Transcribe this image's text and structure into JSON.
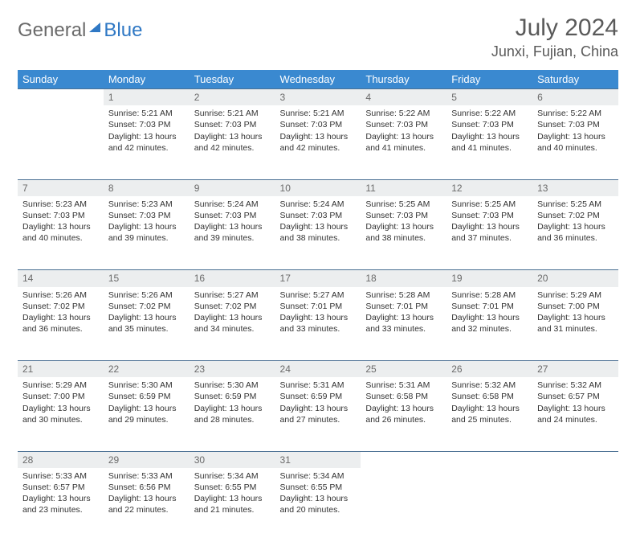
{
  "brand": {
    "part1": "General",
    "part2": "Blue"
  },
  "title": {
    "month": "July 2024",
    "location": "Junxi, Fujian, China"
  },
  "colors": {
    "header_bg": "#3a89d0",
    "header_text": "#ffffff",
    "daynum_bg": "#eceeef",
    "grid_line": "#4a6f93",
    "text": "#333333",
    "muted": "#6a6a6a"
  },
  "weekdays": [
    "Sunday",
    "Monday",
    "Tuesday",
    "Wednesday",
    "Thursday",
    "Friday",
    "Saturday"
  ],
  "weeks": [
    [
      null,
      {
        "d": "1",
        "sr": "5:21 AM",
        "ss": "7:03 PM",
        "dl": "13 hours and 42 minutes."
      },
      {
        "d": "2",
        "sr": "5:21 AM",
        "ss": "7:03 PM",
        "dl": "13 hours and 42 minutes."
      },
      {
        "d": "3",
        "sr": "5:21 AM",
        "ss": "7:03 PM",
        "dl": "13 hours and 42 minutes."
      },
      {
        "d": "4",
        "sr": "5:22 AM",
        "ss": "7:03 PM",
        "dl": "13 hours and 41 minutes."
      },
      {
        "d": "5",
        "sr": "5:22 AM",
        "ss": "7:03 PM",
        "dl": "13 hours and 41 minutes."
      },
      {
        "d": "6",
        "sr": "5:22 AM",
        "ss": "7:03 PM",
        "dl": "13 hours and 40 minutes."
      }
    ],
    [
      {
        "d": "7",
        "sr": "5:23 AM",
        "ss": "7:03 PM",
        "dl": "13 hours and 40 minutes."
      },
      {
        "d": "8",
        "sr": "5:23 AM",
        "ss": "7:03 PM",
        "dl": "13 hours and 39 minutes."
      },
      {
        "d": "9",
        "sr": "5:24 AM",
        "ss": "7:03 PM",
        "dl": "13 hours and 39 minutes."
      },
      {
        "d": "10",
        "sr": "5:24 AM",
        "ss": "7:03 PM",
        "dl": "13 hours and 38 minutes."
      },
      {
        "d": "11",
        "sr": "5:25 AM",
        "ss": "7:03 PM",
        "dl": "13 hours and 38 minutes."
      },
      {
        "d": "12",
        "sr": "5:25 AM",
        "ss": "7:03 PM",
        "dl": "13 hours and 37 minutes."
      },
      {
        "d": "13",
        "sr": "5:25 AM",
        "ss": "7:02 PM",
        "dl": "13 hours and 36 minutes."
      }
    ],
    [
      {
        "d": "14",
        "sr": "5:26 AM",
        "ss": "7:02 PM",
        "dl": "13 hours and 36 minutes."
      },
      {
        "d": "15",
        "sr": "5:26 AM",
        "ss": "7:02 PM",
        "dl": "13 hours and 35 minutes."
      },
      {
        "d": "16",
        "sr": "5:27 AM",
        "ss": "7:02 PM",
        "dl": "13 hours and 34 minutes."
      },
      {
        "d": "17",
        "sr": "5:27 AM",
        "ss": "7:01 PM",
        "dl": "13 hours and 33 minutes."
      },
      {
        "d": "18",
        "sr": "5:28 AM",
        "ss": "7:01 PM",
        "dl": "13 hours and 33 minutes."
      },
      {
        "d": "19",
        "sr": "5:28 AM",
        "ss": "7:01 PM",
        "dl": "13 hours and 32 minutes."
      },
      {
        "d": "20",
        "sr": "5:29 AM",
        "ss": "7:00 PM",
        "dl": "13 hours and 31 minutes."
      }
    ],
    [
      {
        "d": "21",
        "sr": "5:29 AM",
        "ss": "7:00 PM",
        "dl": "13 hours and 30 minutes."
      },
      {
        "d": "22",
        "sr": "5:30 AM",
        "ss": "6:59 PM",
        "dl": "13 hours and 29 minutes."
      },
      {
        "d": "23",
        "sr": "5:30 AM",
        "ss": "6:59 PM",
        "dl": "13 hours and 28 minutes."
      },
      {
        "d": "24",
        "sr": "5:31 AM",
        "ss": "6:59 PM",
        "dl": "13 hours and 27 minutes."
      },
      {
        "d": "25",
        "sr": "5:31 AM",
        "ss": "6:58 PM",
        "dl": "13 hours and 26 minutes."
      },
      {
        "d": "26",
        "sr": "5:32 AM",
        "ss": "6:58 PM",
        "dl": "13 hours and 25 minutes."
      },
      {
        "d": "27",
        "sr": "5:32 AM",
        "ss": "6:57 PM",
        "dl": "13 hours and 24 minutes."
      }
    ],
    [
      {
        "d": "28",
        "sr": "5:33 AM",
        "ss": "6:57 PM",
        "dl": "13 hours and 23 minutes."
      },
      {
        "d": "29",
        "sr": "5:33 AM",
        "ss": "6:56 PM",
        "dl": "13 hours and 22 minutes."
      },
      {
        "d": "30",
        "sr": "5:34 AM",
        "ss": "6:55 PM",
        "dl": "13 hours and 21 minutes."
      },
      {
        "d": "31",
        "sr": "5:34 AM",
        "ss": "6:55 PM",
        "dl": "13 hours and 20 minutes."
      },
      null,
      null,
      null
    ]
  ],
  "labels": {
    "sunrise": "Sunrise:",
    "sunset": "Sunset:",
    "daylight": "Daylight:"
  }
}
